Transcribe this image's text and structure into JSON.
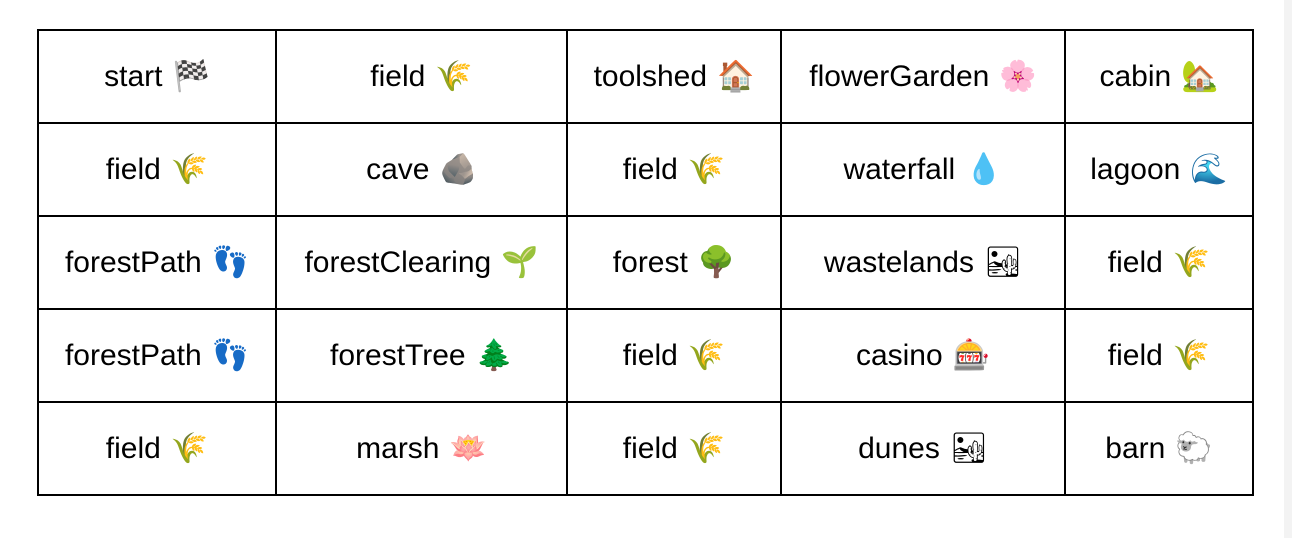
{
  "grid": {
    "rows": [
      [
        {
          "label": "start",
          "emoji": "🏁",
          "icon": "checkered-flag-icon"
        },
        {
          "label": "field",
          "emoji": "🌾",
          "icon": "rice-sheaf-icon"
        },
        {
          "label": "toolshed",
          "emoji": "🏠",
          "icon": "house-icon"
        },
        {
          "label": "flowerGarden",
          "emoji": "🌸",
          "icon": "cherry-blossom-icon"
        },
        {
          "label": "cabin",
          "emoji": "🏡",
          "icon": "house-with-garden-icon"
        }
      ],
      [
        {
          "label": "field",
          "emoji": "🌾",
          "icon": "rice-sheaf-icon"
        },
        {
          "label": "cave",
          "emoji": "🪨",
          "icon": "rock-icon"
        },
        {
          "label": "field",
          "emoji": "🌾",
          "icon": "rice-sheaf-icon"
        },
        {
          "label": "waterfall",
          "emoji": "💧",
          "icon": "droplet-icon"
        },
        {
          "label": "lagoon",
          "emoji": "🌊",
          "icon": "water-wave-icon"
        }
      ],
      [
        {
          "label": "forestPath",
          "emoji": "👣",
          "icon": "footprints-icon"
        },
        {
          "label": "forestClearing",
          "emoji": "🌱",
          "icon": "seedling-icon"
        },
        {
          "label": "forest",
          "emoji": "🌳",
          "icon": "deciduous-tree-icon"
        },
        {
          "label": "wastelands",
          "emoji": "🏜",
          "icon": "desert-icon"
        },
        {
          "label": "field",
          "emoji": "🌾",
          "icon": "rice-sheaf-icon"
        }
      ],
      [
        {
          "label": "forestPath",
          "emoji": "👣",
          "icon": "footprints-icon"
        },
        {
          "label": "forestTree",
          "emoji": "🌲",
          "icon": "evergreen-tree-icon"
        },
        {
          "label": "field",
          "emoji": "🌾",
          "icon": "rice-sheaf-icon"
        },
        {
          "label": "casino",
          "emoji": "🎰",
          "icon": "slot-machine-icon"
        },
        {
          "label": "field",
          "emoji": "🌾",
          "icon": "rice-sheaf-icon"
        }
      ],
      [
        {
          "label": "field",
          "emoji": "🌾",
          "icon": "rice-sheaf-icon"
        },
        {
          "label": "marsh",
          "emoji": "🪷",
          "icon": "lotus-icon"
        },
        {
          "label": "field",
          "emoji": "🌾",
          "icon": "rice-sheaf-icon"
        },
        {
          "label": "dunes",
          "emoji": "🏜",
          "icon": "desert-icon"
        },
        {
          "label": "barn",
          "emoji": "🐑",
          "icon": "sheep-icon"
        }
      ]
    ]
  }
}
